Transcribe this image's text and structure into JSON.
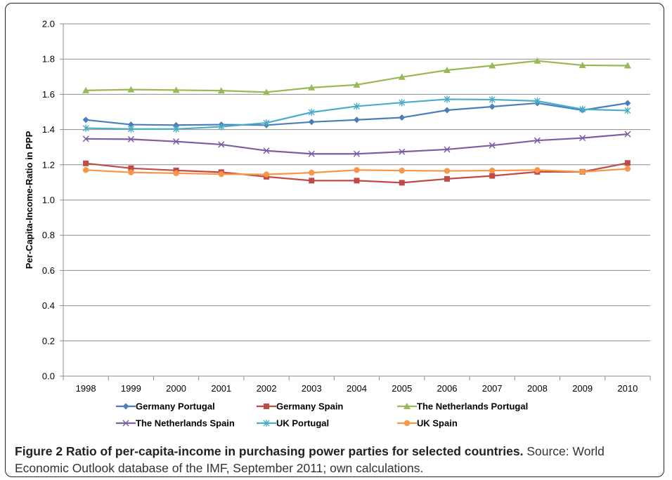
{
  "caption": {
    "title": "Figure 2 Ratio of per-capita-income in purchasing power parties for selected countries.",
    "text": " Source: World Economic Outlook database of the IMF, September 2011; own calculations."
  },
  "chart_data": {
    "type": "line",
    "ylabel": "Per-Capita-Income-Ratio in PPP",
    "xlabel": "",
    "ylim": [
      0,
      2.0
    ],
    "yticks": [
      "0.0",
      "0.2",
      "0.4",
      "0.6",
      "0.8",
      "1.0",
      "1.2",
      "1.4",
      "1.6",
      "1.8",
      "2.0"
    ],
    "categories": [
      "1998",
      "1999",
      "2000",
      "2001",
      "2002",
      "2003",
      "2004",
      "2005",
      "2006",
      "2007",
      "2008",
      "2009",
      "2010"
    ],
    "grid": "horizontal",
    "legend": "bottom",
    "series": [
      {
        "name": "Germany Portugal",
        "color": "#4A7EBB",
        "marker": "diamond",
        "values": [
          1.455,
          1.428,
          1.425,
          1.428,
          1.425,
          1.443,
          1.455,
          1.468,
          1.51,
          1.53,
          1.55,
          1.51,
          1.55
        ]
      },
      {
        "name": "Germany Spain",
        "color": "#BE4B48",
        "marker": "square",
        "values": [
          1.208,
          1.18,
          1.168,
          1.158,
          1.132,
          1.11,
          1.11,
          1.098,
          1.12,
          1.137,
          1.16,
          1.16,
          1.21
        ]
      },
      {
        "name": "The Netherlands Portugal",
        "color": "#98B954",
        "marker": "triangle",
        "values": [
          1.622,
          1.627,
          1.624,
          1.621,
          1.612,
          1.638,
          1.654,
          1.698,
          1.737,
          1.763,
          1.79,
          1.765,
          1.763
        ]
      },
      {
        "name": "The Netherlands Spain",
        "color": "#7D5FA0",
        "marker": "x",
        "values": [
          1.347,
          1.345,
          1.332,
          1.315,
          1.28,
          1.262,
          1.262,
          1.274,
          1.287,
          1.31,
          1.338,
          1.352,
          1.374
        ]
      },
      {
        "name": "UK Portugal",
        "color": "#4BACC6",
        "marker": "star",
        "values": [
          1.408,
          1.403,
          1.403,
          1.416,
          1.438,
          1.498,
          1.532,
          1.553,
          1.572,
          1.57,
          1.562,
          1.515,
          1.508
        ]
      },
      {
        "name": "UK Spain",
        "color": "#F79646",
        "marker": "circle",
        "values": [
          1.17,
          1.157,
          1.152,
          1.147,
          1.145,
          1.155,
          1.17,
          1.167,
          1.165,
          1.167,
          1.17,
          1.16,
          1.177
        ]
      }
    ]
  }
}
